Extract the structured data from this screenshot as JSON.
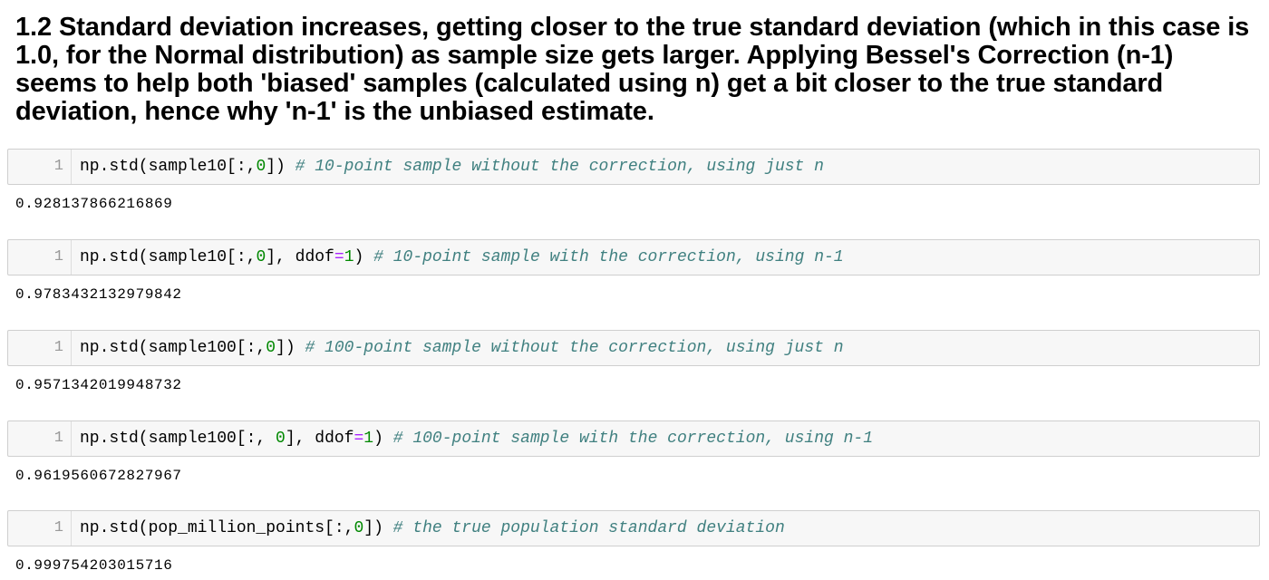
{
  "heading": {
    "text": "1.2  Standard deviation increases, getting closer to the true standard deviation (which in this case is 1.0, for the Normal distribution) as sample size gets larger. Applying Bessel's Correction (n-1) seems to help both 'biased' samples (calculated using n) get a bit closer to the true standard deviation, hence why 'n-1' is the unbiased estimate."
  },
  "cells": [
    {
      "line_number": "1",
      "code": {
        "pre": "np.std(sample10[:,",
        "num1": "0",
        "post": "]) ",
        "comment": "# 10-point sample without the correction, using just n"
      },
      "output": "0.928137866216869"
    },
    {
      "line_number": "1",
      "code": {
        "pre": "np.std(sample10[:,",
        "num1": "0",
        "mid": "], ddof",
        "op": "=",
        "num2": "1",
        "post": ") ",
        "comment": "# 10-point sample with the correction, using n-1"
      },
      "output": "0.9783432132979842"
    },
    {
      "line_number": "1",
      "code": {
        "pre": "np.std(sample100[:,",
        "num1": "0",
        "post": "]) ",
        "comment": "# 100-point sample without the correction, using just n"
      },
      "output": "0.9571342019948732"
    },
    {
      "line_number": "1",
      "code": {
        "pre": "np.std(sample100[:, ",
        "num1": "0",
        "mid": "], ddof",
        "op": "=",
        "num2": "1",
        "post": ") ",
        "comment": "# 100-point sample with the correction, using n-1"
      },
      "output": "0.9619560672827967"
    },
    {
      "line_number": "1",
      "code": {
        "pre": "np.std(pop_million_points[:,",
        "num1": "0",
        "post": "]) ",
        "comment": "# the true population standard deviation"
      },
      "output": "0.999754203015716"
    }
  ]
}
